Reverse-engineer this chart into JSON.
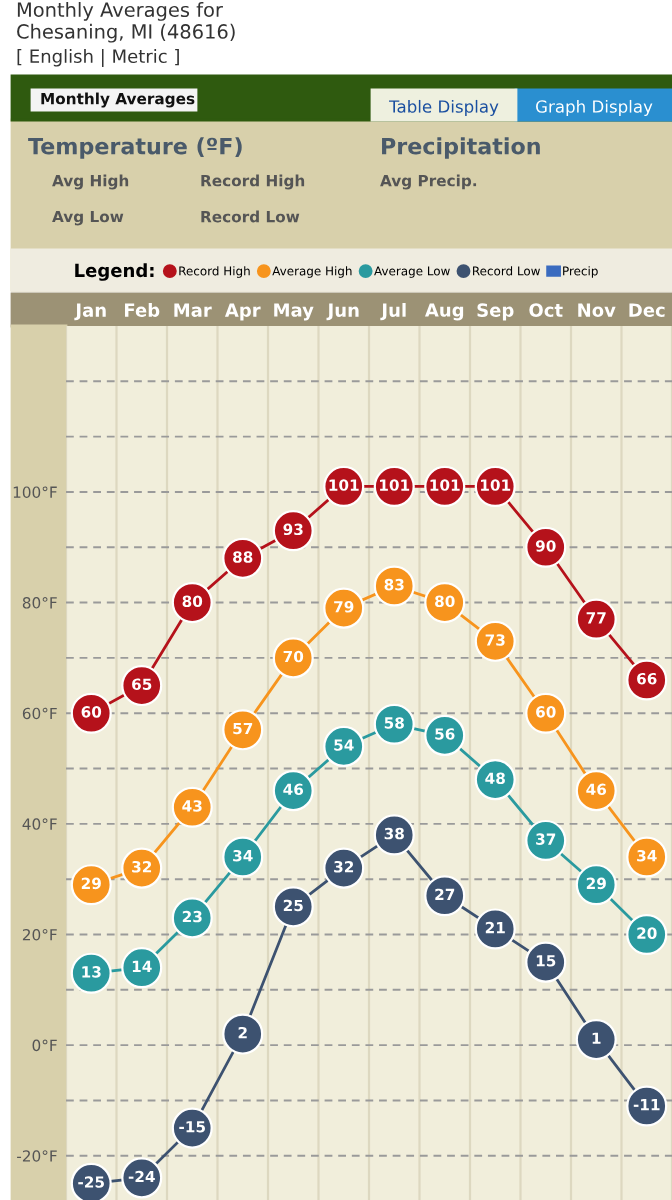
{
  "chart_data": {
    "type": "line",
    "title": "Monthly Averages for\nChesaning, MI (48616)",
    "annotations": [
      "[ English | Metric ]",
      "Monthly Averages",
      "Table Display",
      "Graph Display",
      "Temperature (ºF)",
      "Avg High",
      "Record High",
      "Avg Low",
      "Record Low",
      "Precipitation",
      "Avg Precip."
    ],
    "legend_title": "Legend:",
    "categories": [
      "Jan",
      "Feb",
      "Mar",
      "Apr",
      "May",
      "Jun",
      "Jul",
      "Aug",
      "Sep",
      "Oct",
      "Nov",
      "Dec"
    ],
    "series": [
      {
        "name": "Record High",
        "color": "#b5121b",
        "values": [
          60,
          65,
          80,
          88,
          93,
          101,
          101,
          101,
          101,
          90,
          77,
          66
        ]
      },
      {
        "name": "Average High",
        "color": "#f7941d",
        "values": [
          29,
          32,
          43,
          57,
          70,
          79,
          83,
          80,
          73,
          60,
          46,
          34
        ]
      },
      {
        "name": "Average Low",
        "color": "#2a9a9f",
        "values": [
          13,
          14,
          23,
          34,
          46,
          54,
          58,
          56,
          48,
          37,
          29,
          20
        ]
      },
      {
        "name": "Record Low",
        "color": "#3d5270",
        "values": [
          -25,
          -24,
          -15,
          2,
          25,
          32,
          38,
          27,
          21,
          15,
          1,
          -11
        ]
      },
      {
        "name": "Precip",
        "color": "#3a6bbf",
        "type": "bar",
        "values": [
          null,
          null,
          null,
          null,
          null,
          null,
          null,
          null,
          null,
          null,
          null,
          null
        ]
      }
    ],
    "ylim": [
      -28,
      130
    ],
    "yticks": [
      {
        "value": -20,
        "label": "-20°F"
      },
      {
        "value": -10,
        "label": null
      },
      {
        "value": 0,
        "label": "0°F"
      },
      {
        "value": 10,
        "label": null
      },
      {
        "value": 20,
        "label": "20°F"
      },
      {
        "value": 30,
        "label": null
      },
      {
        "value": 40,
        "label": "40°F"
      },
      {
        "value": 50,
        "label": null
      },
      {
        "value": 60,
        "label": "60°F"
      },
      {
        "value": 70,
        "label": null
      },
      {
        "value": 80,
        "label": "80°F"
      },
      {
        "value": 90,
        "label": null
      },
      {
        "value": 100,
        "label": "100°F"
      },
      {
        "value": 110,
        "label": null
      },
      {
        "value": 120,
        "label": null
      }
    ],
    "grid": "y",
    "legend": "top",
    "marker": "circle",
    "line_style": "solid",
    "data_labels": true
  }
}
